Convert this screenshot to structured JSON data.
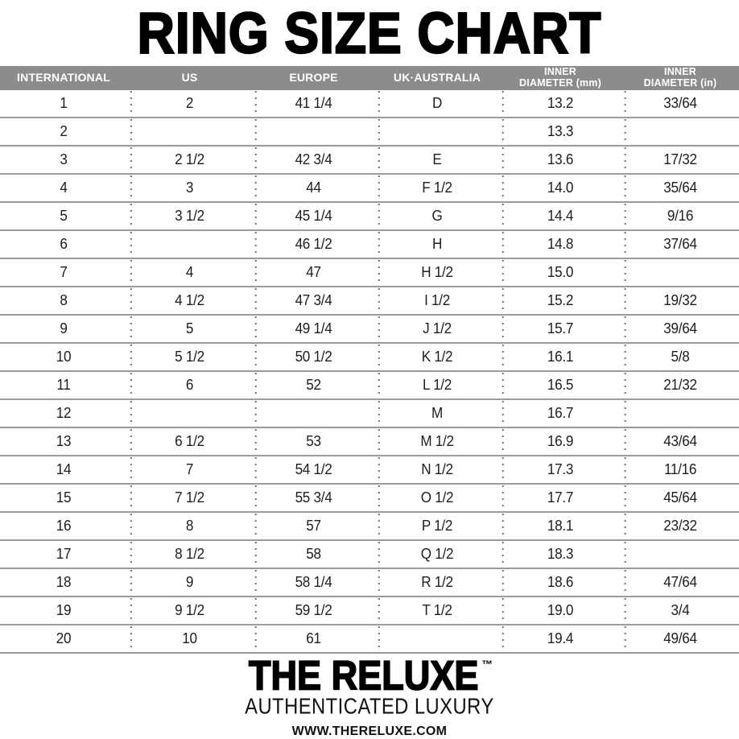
{
  "page": {
    "title": "RING SIZE CHART"
  },
  "table": {
    "headers_display": [
      "INTERNATIONAL",
      "US",
      "EUROPE",
      "UK·AUSTRALIA",
      "INNER\nDIAMETER (mm)",
      "INNER\nDIAMETER (in)"
    ]
  },
  "chart_data": {
    "type": "table",
    "title": "RING SIZE CHART",
    "columns": [
      "INTERNATIONAL",
      "US",
      "EUROPE",
      "UK·AUSTRALIA",
      "INNER DIAMETER (mm)",
      "INNER DIAMETER (in)"
    ],
    "rows": [
      [
        "1",
        "2",
        "41 1/4",
        "D",
        "13.2",
        "33/64"
      ],
      [
        "2",
        "",
        "",
        "",
        "13.3",
        ""
      ],
      [
        "3",
        "2 1/2",
        "42 3/4",
        "E",
        "13.6",
        "17/32"
      ],
      [
        "4",
        "3",
        "44",
        "F 1/2",
        "14.0",
        "35/64"
      ],
      [
        "5",
        "3 1/2",
        "45 1/4",
        "G",
        "14.4",
        "9/16"
      ],
      [
        "6",
        "",
        "46 1/2",
        "H",
        "14.8",
        "37/64"
      ],
      [
        "7",
        "4",
        "47",
        "H 1/2",
        "15.0",
        ""
      ],
      [
        "8",
        "4 1/2",
        "47 3/4",
        "I 1/2",
        "15.2",
        "19/32"
      ],
      [
        "9",
        "5",
        "49 1/4",
        "J 1/2",
        "15.7",
        "39/64"
      ],
      [
        "10",
        "5 1/2",
        "50 1/2",
        "K 1/2",
        "16.1",
        "5/8"
      ],
      [
        "11",
        "6",
        "52",
        "L 1/2",
        "16.5",
        "21/32"
      ],
      [
        "12",
        "",
        "",
        "M",
        "16.7",
        ""
      ],
      [
        "13",
        "6 1/2",
        "53",
        "M 1/2",
        "16.9",
        "43/64"
      ],
      [
        "14",
        "7",
        "54 1/2",
        "N 1/2",
        "17.3",
        "11/16"
      ],
      [
        "15",
        "7 1/2",
        "55 3/4",
        "O 1/2",
        "17.7",
        "45/64"
      ],
      [
        "16",
        "8",
        "57",
        "P 1/2",
        "18.1",
        "23/32"
      ],
      [
        "17",
        "8 1/2",
        "58",
        "Q 1/2",
        "18.3",
        ""
      ],
      [
        "18",
        "9",
        "58 1/4",
        "R 1/2",
        "18.6",
        "47/64"
      ],
      [
        "19",
        "9 1/2",
        "59 1/2",
        "T 1/2",
        "19.0",
        "3/4"
      ],
      [
        "20",
        "10",
        "61",
        "",
        "19.4",
        "49/64"
      ]
    ]
  },
  "footer": {
    "brand": "THE RELUXE",
    "trademark": "™",
    "tagline": "AUTHENTICATED LUXURY",
    "website": "WWW.THERELUXE.COM"
  },
  "colors": {
    "header_bg": "#8c8c8c",
    "header_text": "#ffffff",
    "row_line": "#9b9b9b",
    "dotted_separator": "#6f6f6f",
    "text": "#1d1d1d",
    "title": "#000000"
  }
}
